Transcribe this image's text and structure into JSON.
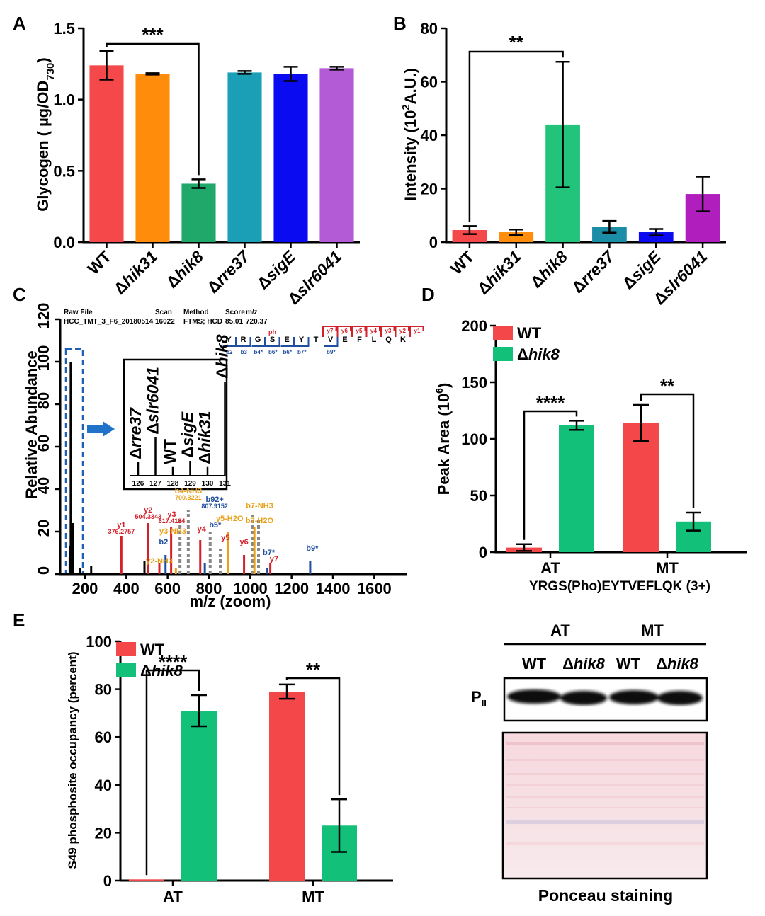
{
  "chart_data": [
    {
      "panel": "A",
      "type": "bar",
      "ylabel_pre": "Glycogen ( µg/OD",
      "ylabel_sub": "730",
      "ylabel_post": ")",
      "ylim": [
        0,
        1.5
      ],
      "yticks": [
        "0.0",
        "0.5",
        "1.0",
        "1.5"
      ],
      "ytick_values": [
        0,
        0.5,
        1.0,
        1.5
      ],
      "categories": [
        {
          "prefix": "",
          "name": "WT"
        },
        {
          "prefix": "Δ",
          "name": "hik31"
        },
        {
          "prefix": "Δ",
          "name": "hik8"
        },
        {
          "prefix": "Δ",
          "name": "rre37"
        },
        {
          "prefix": "Δ",
          "name": "sigE"
        },
        {
          "prefix": "Δ",
          "name": "slr6041"
        }
      ],
      "values": [
        1.24,
        1.18,
        0.41,
        1.19,
        1.18,
        1.22
      ],
      "errors": [
        0.1,
        0.005,
        0.03,
        0.01,
        0.05,
        0.01
      ],
      "colors": [
        "#f4484a",
        "#ff8d0b",
        "#20a86a",
        "#1a9fb6",
        "#0b0bf1",
        "#b35ad6"
      ],
      "significance": [
        {
          "from": 0,
          "to": 2,
          "label": "***"
        }
      ]
    },
    {
      "panel": "B",
      "type": "bar",
      "ylabel_pre": "Intensity (10",
      "ylabel_sup": "2",
      "ylabel_post": "A.U.)",
      "ylim": [
        0,
        80
      ],
      "yticks": [
        "0",
        "20",
        "40",
        "60",
        "80"
      ],
      "ytick_values": [
        0,
        20,
        40,
        60,
        80
      ],
      "categories": [
        {
          "prefix": "",
          "name": "WT"
        },
        {
          "prefix": "Δ",
          "name": "hik31"
        },
        {
          "prefix": "Δ",
          "name": "hik8"
        },
        {
          "prefix": "Δ",
          "name": "rre37"
        },
        {
          "prefix": "Δ",
          "name": "sigE"
        },
        {
          "prefix": "Δ",
          "name": "slr6041"
        }
      ],
      "values": [
        4.5,
        3.7,
        44,
        5.7,
        3.7,
        18
      ],
      "errors": [
        1.5,
        1.0,
        23.5,
        2.2,
        1.2,
        6.5
      ],
      "colors": [
        "#f4484a",
        "#ff8d0b",
        "#22c37a",
        "#1b8da6",
        "#0b0bf1",
        "#b01fbd"
      ],
      "significance": [
        {
          "from": 0,
          "to": 2,
          "label": "**"
        }
      ]
    },
    {
      "panel": "C",
      "type": "spectrum",
      "xlabel": "m/z (zoom)",
      "ylabel": "Relative Abundance",
      "xlim": [
        80,
        1760
      ],
      "ylim": [
        0,
        120
      ],
      "xticks": [
        "200",
        "400",
        "600",
        "800",
        "1000",
        "1200",
        "1400",
        "1600"
      ],
      "xtick_values": [
        200,
        400,
        600,
        800,
        1000,
        1200,
        1400,
        1600
      ],
      "yticks": [
        "0",
        "20",
        "40",
        "60",
        "80",
        "100",
        "120"
      ],
      "ytick_values": [
        0,
        20,
        40,
        60,
        80,
        100,
        120
      ],
      "header": {
        "labels": [
          "Raw File",
          "Scan",
          "Method",
          "Score",
          "m/z"
        ],
        "values": [
          "HCC_TMT_3_F6_20180514",
          "16022",
          "FTMS; HCD",
          "85.01",
          "720.37"
        ]
      },
      "peptide": [
        "Y",
        "R",
        "G",
        "S",
        "E",
        "Y",
        "T",
        "V",
        "E",
        "F",
        "L",
        "Q",
        "K"
      ],
      "phospho_mark": "ph",
      "y_ions": [
        "y7",
        "y6",
        "y5",
        "y4",
        "y3",
        "y2",
        "y1"
      ],
      "b_ions": [
        "b2",
        "b3",
        "b4*",
        "b6*",
        "b6*",
        "b7*",
        "b9*"
      ],
      "peaks": [
        {
          "mz": 126,
          "ab": 8,
          "color": "#000"
        },
        {
          "mz": 127,
          "ab": 13,
          "color": "#000"
        },
        {
          "mz": 128,
          "ab": 6,
          "color": "#000"
        },
        {
          "mz": 129,
          "ab": 8,
          "color": "#000"
        },
        {
          "mz": 130,
          "ab": 6,
          "color": "#000"
        },
        {
          "mz": 131,
          "ab": 100,
          "color": "#000"
        },
        {
          "mz": 140,
          "ab": 24,
          "color": "#000"
        },
        {
          "mz": 175,
          "ab": 3,
          "color": "#000"
        },
        {
          "mz": 230,
          "ab": 4,
          "color": "#000"
        },
        {
          "mz": 376,
          "ab": 18,
          "color": "#d32029"
        },
        {
          "mz": 488,
          "ab": 6,
          "color": "#000"
        },
        {
          "mz": 504,
          "ab": 24,
          "color": "#d32029"
        },
        {
          "mz": 560,
          "ab": 5,
          "color": "#d32029"
        },
        {
          "mz": 590,
          "ab": 9,
          "color": "#1f4fa0"
        },
        {
          "mz": 617,
          "ab": 22,
          "color": "#d32029"
        },
        {
          "mz": 640,
          "ab": 3,
          "color": "#e8a21a"
        },
        {
          "mz": 660,
          "ab": 27,
          "color": "#888888"
        },
        {
          "mz": 700,
          "ab": 30,
          "color": "#888888"
        },
        {
          "mz": 758,
          "ab": 16,
          "color": "#d32029"
        },
        {
          "mz": 780,
          "ab": 5,
          "color": "#1f4fa0"
        },
        {
          "mz": 806,
          "ab": 20,
          "color": "#888888"
        },
        {
          "mz": 855,
          "ab": 12,
          "color": "#888888"
        },
        {
          "mz": 893,
          "ab": 20,
          "color": "#e8a21a"
        },
        {
          "mz": 970,
          "ab": 9,
          "color": "#d32029"
        },
        {
          "mz": 1010,
          "ab": 28,
          "color": "#888888"
        },
        {
          "mz": 1020,
          "ab": 22,
          "color": "#e8a21a"
        },
        {
          "mz": 1040,
          "ab": 27,
          "color": "#888888"
        },
        {
          "mz": 1083,
          "ab": 3,
          "color": "#1f4fa0"
        },
        {
          "mz": 1097,
          "ab": 5,
          "color": "#d32029"
        },
        {
          "mz": 1290,
          "ab": 6,
          "color": "#1f4fa0"
        }
      ],
      "annotations": [
        {
          "mz": 376,
          "ab": 20,
          "label": "y1",
          "sub": "376.2757",
          "color": "#d32029"
        },
        {
          "mz": 506,
          "ab": 27,
          "label": "y2",
          "sub": "504.3343",
          "color": "#d32029"
        },
        {
          "mz": 620,
          "ab": 25,
          "label": "y3",
          "sub": "617.4184",
          "color": "#d32029"
        },
        {
          "mz": 700,
          "ab": 36,
          "label": "b4-NH3",
          "sub": "700.3221",
          "color": "#e8a21a"
        },
        {
          "mz": 828,
          "ab": 32,
          "label": "b92+",
          "sub": "807.9152",
          "color": "#1f4fa0"
        },
        {
          "mz": 625,
          "ab": 17,
          "label": "y3-NH3",
          "sub": "",
          "color": "#e8a21a"
        },
        {
          "mz": 580,
          "ab": 12,
          "label": "b2",
          "sub": "",
          "color": "#1f4fa0"
        },
        {
          "mz": 560,
          "ab": 3,
          "label": "y2-NH3",
          "sub": "",
          "color": "#e8a21a"
        },
        {
          "mz": 765,
          "ab": 18,
          "label": "y4",
          "sub": "",
          "color": "#d32029"
        },
        {
          "mz": 830,
          "ab": 20,
          "label": "b5*",
          "sub": "",
          "color": "#1f4fa0"
        },
        {
          "mz": 900,
          "ab": 23,
          "label": "y5-H2O",
          "sub": "",
          "color": "#e8a21a"
        },
        {
          "mz": 1045,
          "ab": 29,
          "label": "b7-NH3",
          "sub": "",
          "color": "#e8a21a"
        },
        {
          "mz": 1045,
          "ab": 22,
          "label": "b7-H2O",
          "sub": "",
          "color": "#e8a21a"
        },
        {
          "mz": 880,
          "ab": 14,
          "label": "y5",
          "sub": "",
          "color": "#d32029"
        },
        {
          "mz": 970,
          "ab": 12,
          "label": "y6",
          "sub": "",
          "color": "#d32029"
        },
        {
          "mz": 1090,
          "ab": 7,
          "label": "b7*",
          "sub": "",
          "color": "#1f4fa0"
        },
        {
          "mz": 1115,
          "ab": 4,
          "label": "y7",
          "sub": "",
          "color": "#d32029"
        },
        {
          "mz": 1300,
          "ab": 9,
          "label": "b9*",
          "sub": "",
          "color": "#1f4fa0"
        }
      ],
      "inset": {
        "xticks": [
          "126",
          "127",
          "128",
          "129",
          "130",
          "131"
        ],
        "values": [
          11,
          31,
          7,
          12,
          7,
          76
        ],
        "labels": [
          {
            "prefix": "Δ",
            "name": "rre37"
          },
          {
            "prefix": "Δ",
            "name": "slr6041"
          },
          {
            "prefix": "",
            "name": "WT"
          },
          {
            "prefix": "Δ",
            "name": "sigE"
          },
          {
            "prefix": "Δ",
            "name": "hik31"
          },
          {
            "prefix": "Δ",
            "name": "hik8"
          }
        ]
      }
    },
    {
      "panel": "D",
      "type": "bar",
      "ylabel_pre": "Peak Area (10",
      "ylabel_sup": "6",
      "ylabel_post": ")",
      "xlabel": "YRGS(Pho)EYTVEFLQK (3+)",
      "ylim": [
        0,
        200
      ],
      "yticks": [
        "0",
        "50",
        "100",
        "150",
        "200"
      ],
      "ytick_values": [
        0,
        50,
        100,
        150,
        200
      ],
      "categories": [
        "AT",
        "MT"
      ],
      "series": [
        {
          "prefix": "",
          "name": "WT",
          "color": "#f4474a",
          "values": [
            4,
            114
          ],
          "errors": [
            3,
            16
          ]
        },
        {
          "prefix": "Δ",
          "name": "hik8",
          "color": "#12c07a",
          "values": [
            112,
            27
          ],
          "errors": [
            4,
            8
          ]
        }
      ],
      "significance": [
        {
          "group": 0,
          "label": "****"
        },
        {
          "group": 1,
          "label": "**"
        }
      ]
    },
    {
      "panel": "E",
      "type": "bar",
      "ylabel": "S49 phosphosite occupancy (percent)",
      "ylim": [
        0,
        100
      ],
      "yticks": [
        "0",
        "20",
        "40",
        "60",
        "80",
        "100"
      ],
      "ytick_values": [
        0,
        20,
        40,
        60,
        80,
        100
      ],
      "categories": [
        "AT",
        "MT"
      ],
      "series": [
        {
          "prefix": "",
          "name": "WT",
          "color": "#f4474a",
          "values": [
            0.5,
            79
          ],
          "errors": [
            0,
            3
          ]
        },
        {
          "prefix": "Δ",
          "name": "hik8",
          "color": "#12c07a",
          "values": [
            71,
            23
          ],
          "errors": [
            6.5,
            11
          ]
        }
      ],
      "significance": [
        {
          "group": 0,
          "label": "****"
        },
        {
          "group": 1,
          "label": "**"
        }
      ]
    }
  ],
  "blot": {
    "groups": [
      "AT",
      "MT"
    ],
    "lanes": [
      {
        "prefix": "",
        "name": "WT"
      },
      {
        "prefix": "Δ",
        "name": "hik8"
      },
      {
        "prefix": "",
        "name": "WT"
      },
      {
        "prefix": "Δ",
        "name": "hik8"
      }
    ],
    "protein": "P",
    "protein_sub": "II",
    "caption": "Ponceau staining"
  }
}
